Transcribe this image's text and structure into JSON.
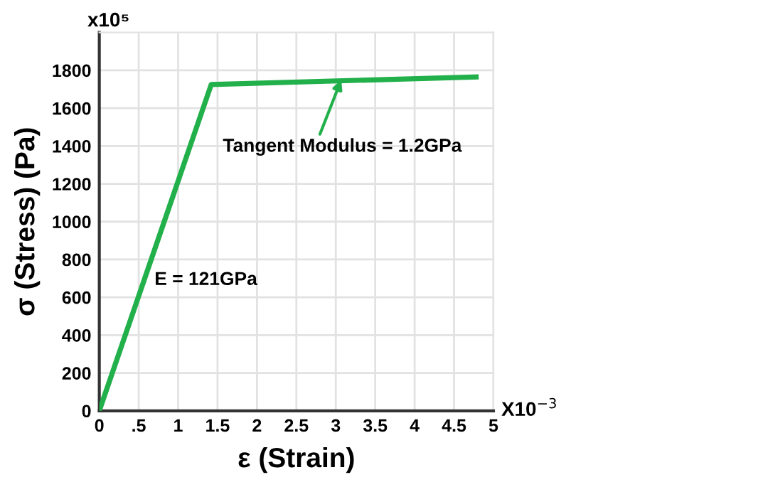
{
  "chart_data": {
    "type": "line",
    "xlabel": "ε (Strain)",
    "ylabel": "σ (Stress) (Pa)",
    "x": [
      0,
      1.42,
      4.78
    ],
    "series": [
      {
        "color": "#22b04b",
        "values": [
          0,
          1725,
          1765
        ]
      }
    ],
    "xlim": [
      0,
      5
    ],
    "ylim": [
      0,
      2000
    ],
    "xticks": [
      0,
      {
        "value": 0.5,
        "label": ".5"
      },
      1,
      1.5,
      2,
      2.5,
      3,
      3.5,
      4,
      4.5,
      5
    ],
    "yticks": [
      0,
      200,
      400,
      600,
      800,
      1000,
      1200,
      1400,
      1600,
      1800
    ],
    "grid": true,
    "marker": "none",
    "line_style": "solid",
    "annotations": [
      {
        "text": "Tangent Modulus = 1.2GPa",
        "x": 3.07,
        "y": 1750
      },
      {
        "text": "E = 121GPa",
        "x": 0.55,
        "y": 670
      },
      "x10⁵",
      "X10$^{−3}$"
    ]
  }
}
